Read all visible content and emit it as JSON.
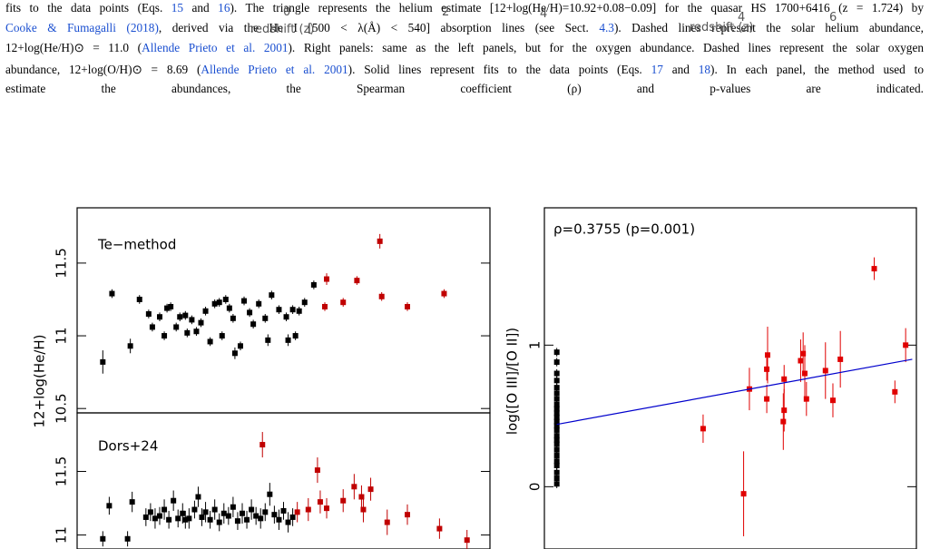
{
  "fragments": [
    "0",
    "2",
    "4",
    "redshift (z)",
    "4",
    "redshift (z)",
    "6"
  ],
  "caption": {
    "lines": [
      [
        "fits to the data points (Eqs. ",
        {
          "text": "15",
          "link": true
        },
        " and ",
        {
          "text": "16",
          "link": true
        },
        "). The triangle represents the helium estimate [12+log(He/H)=10.92+0.08−0.09] for the quasar HS 1700+6416 (z = 1.724) by"
      ],
      [
        {
          "text": "Cooke & Fumagalli (2018)",
          "link": true
        },
        ", derived via the He I [500 < λ(Å) < 540] absorption lines (see Sect. ",
        {
          "text": "4.3",
          "link": true
        },
        "). Dashed lines represent the solar helium abundance,"
      ],
      [
        "12+log(He/H)⊙ = 11.0 (",
        {
          "text": "Allende Prieto et al. 2001",
          "link": true
        },
        "). Right panels: same as the left panels, but for the oxygen abundance. Dashed lines represent the solar oxygen"
      ],
      [
        "abundance, 12+log(O/H)⊙ = 8.69 (",
        {
          "text": "Allende Prieto et al. 2001",
          "link": true
        },
        "). Solid lines represent fits to the data points (Eqs. ",
        {
          "text": "17",
          "link": true
        },
        " and ",
        {
          "text": "18",
          "link": true
        },
        "). In each panel, the method used to"
      ],
      [
        "estimate the abundances, the Spearman coefficient (ρ) and p-values are indicated."
      ]
    ]
  },
  "left_ylabel": "12+log(He/H)",
  "chart_data": [
    {
      "type": "scatter",
      "annotation": "Te−method",
      "xlim": [
        0,
        4.5
      ],
      "ylim": [
        10.47,
        11.88
      ],
      "yticks": [
        10.5,
        11,
        11.5
      ],
      "series": [
        {
          "color": "#000000",
          "x": [
            0.28,
            0.38,
            0.58,
            0.68,
            0.78,
            0.82,
            0.9,
            0.95,
            0.98,
            1.02,
            1.08,
            1.12,
            1.18,
            1.2,
            1.25,
            1.3,
            1.35,
            1.4,
            1.45,
            1.5,
            1.55,
            1.58,
            1.62,
            1.66,
            1.7,
            1.72,
            1.78,
            1.82,
            1.88,
            1.92,
            1.98,
            2.05,
            2.08,
            2.12,
            2.2,
            2.28,
            2.3,
            2.35,
            2.38,
            2.42,
            2.48,
            2.58
          ],
          "y": [
            10.82,
            11.29,
            10.93,
            11.25,
            11.15,
            11.06,
            11.13,
            11.0,
            11.19,
            11.2,
            11.06,
            11.13,
            11.14,
            11.02,
            11.11,
            11.03,
            11.09,
            11.17,
            10.96,
            11.22,
            11.23,
            11.0,
            11.25,
            11.19,
            11.12,
            10.88,
            10.93,
            11.24,
            11.16,
            11.08,
            11.22,
            11.12,
            10.97,
            11.28,
            11.18,
            11.13,
            10.97,
            11.18,
            11.0,
            11.17,
            11.23,
            11.35
          ],
          "errors": [
            0.08,
            0.03,
            0.05,
            0.03,
            0.03,
            0.03,
            0.03,
            0.03,
            0.03,
            0.03,
            0.03,
            0.03,
            0.03,
            0.03,
            0.03,
            0.03,
            0.03,
            0.03,
            0.03,
            0.03,
            0.03,
            0.03,
            0.03,
            0.03,
            0.03,
            0.04,
            0.03,
            0.03,
            0.03,
            0.03,
            0.03,
            0.03,
            0.04,
            0.03,
            0.03,
            0.03,
            0.04,
            0.03,
            0.03,
            0.03,
            0.03,
            0.03
          ]
        },
        {
          "color": "#c00000",
          "x": [
            2.7,
            2.72,
            2.9,
            3.05,
            3.3,
            3.32,
            3.6,
            4.0
          ],
          "y": [
            11.2,
            11.39,
            11.23,
            11.38,
            11.65,
            11.27,
            11.2,
            11.29
          ],
          "errors": [
            0.03,
            0.04,
            0.03,
            0.03,
            0.05,
            0.03,
            0.03,
            0.03
          ]
        }
      ]
    },
    {
      "type": "scatter",
      "annotation": "Dors+24",
      "xlim": [
        0,
        4.5
      ],
      "ylim": [
        10.89,
        11.96
      ],
      "yticks": [
        11,
        11.5
      ],
      "series": [
        {
          "color": "#000000",
          "x": [
            0.28,
            0.35,
            0.55,
            0.6,
            0.75,
            0.8,
            0.85,
            0.9,
            0.95,
            1.0,
            1.05,
            1.1,
            1.15,
            1.18,
            1.22,
            1.28,
            1.32,
            1.36,
            1.4,
            1.45,
            1.5,
            1.55,
            1.6,
            1.65,
            1.7,
            1.75,
            1.8,
            1.85,
            1.9,
            1.95,
            2.0,
            2.05,
            2.1,
            2.15,
            2.2,
            2.25,
            2.3,
            2.35
          ],
          "y": [
            10.97,
            11.23,
            10.97,
            11.26,
            11.14,
            11.18,
            11.13,
            11.15,
            11.2,
            11.12,
            11.27,
            11.13,
            11.17,
            11.12,
            11.13,
            11.2,
            11.3,
            11.14,
            11.18,
            11.12,
            11.2,
            11.1,
            11.17,
            11.15,
            11.22,
            11.11,
            11.17,
            11.12,
            11.2,
            11.15,
            11.13,
            11.18,
            11.32,
            11.16,
            11.12,
            11.19,
            11.1,
            11.14
          ],
          "errors": [
            0.06,
            0.07,
            0.06,
            0.08,
            0.07,
            0.07,
            0.08,
            0.07,
            0.08,
            0.07,
            0.08,
            0.07,
            0.08,
            0.07,
            0.08,
            0.07,
            0.08,
            0.07,
            0.08,
            0.07,
            0.08,
            0.07,
            0.08,
            0.07,
            0.08,
            0.07,
            0.08,
            0.07,
            0.08,
            0.07,
            0.08,
            0.07,
            0.09,
            0.07,
            0.08,
            0.07,
            0.08,
            0.07
          ]
        },
        {
          "color": "#c00000",
          "x": [
            2.02,
            2.4,
            2.52,
            2.62,
            2.65,
            2.72,
            2.9,
            3.02,
            3.1,
            3.12,
            3.2,
            3.38,
            3.6,
            3.95,
            4.25
          ],
          "y": [
            11.71,
            11.18,
            11.2,
            11.51,
            11.26,
            11.21,
            11.27,
            11.38,
            11.3,
            11.2,
            11.36,
            11.1,
            11.16,
            11.05,
            10.96
          ],
          "errors": [
            0.1,
            0.08,
            0.09,
            0.1,
            0.09,
            0.08,
            0.09,
            0.1,
            0.09,
            0.1,
            0.09,
            0.1,
            0.08,
            0.08,
            0.08
          ]
        }
      ]
    },
    {
      "type": "scatter",
      "ylabel": "log([O III]/[O II])",
      "annotation": "ρ=0.3755 (p=0.001)",
      "xlim": [
        0,
        4.5
      ],
      "ylim": [
        -0.44,
        1.97
      ],
      "yticks": [
        0,
        1
      ],
      "series": [
        {
          "color": "#000000",
          "x": [
            0.15,
            0.15,
            0.15,
            0.15,
            0.15,
            0.15,
            0.15,
            0.15,
            0.15,
            0.15,
            0.15,
            0.15,
            0.15,
            0.15,
            0.15,
            0.15,
            0.15,
            0.15,
            0.15,
            0.15,
            0.15,
            0.15,
            0.15,
            0.15
          ],
          "y": [
            0.02,
            0.06,
            0.1,
            0.15,
            0.18,
            0.22,
            0.26,
            0.3,
            0.33,
            0.36,
            0.4,
            0.43,
            0.46,
            0.49,
            0.52,
            0.55,
            0.58,
            0.62,
            0.66,
            0.7,
            0.75,
            0.8,
            0.88,
            0.95
          ],
          "errors": [
            0.03,
            0.03,
            0.03,
            0.03,
            0.03,
            0.03,
            0.03,
            0.03,
            0.03,
            0.03,
            0.03,
            0.03,
            0.03,
            0.03,
            0.03,
            0.03,
            0.03,
            0.03,
            0.03,
            0.03,
            0.03,
            0.03,
            0.03,
            0.03
          ]
        },
        {
          "color": "#e00000",
          "x": [
            1.92,
            2.41,
            2.48,
            2.69,
            2.69,
            2.7,
            2.89,
            2.9,
            2.9,
            3.1,
            3.13,
            3.15,
            3.17,
            3.4,
            3.49,
            3.58,
            3.99,
            4.24,
            4.37
          ],
          "y": [
            0.41,
            -0.05,
            0.69,
            0.62,
            0.83,
            0.93,
            0.46,
            0.54,
            0.76,
            0.89,
            0.94,
            0.8,
            0.62,
            0.82,
            0.61,
            0.9,
            1.54,
            0.67,
            1.0
          ],
          "errors": [
            0.1,
            0.3,
            0.15,
            0.1,
            0.08,
            0.2,
            0.2,
            0.15,
            0.1,
            0.15,
            0.15,
            0.2,
            0.12,
            0.2,
            0.12,
            0.2,
            0.08,
            0.08,
            0.12
          ]
        }
      ],
      "fit": {
        "color": "#0000cc",
        "x": [
          0.15,
          4.45
        ],
        "y": [
          0.44,
          0.9
        ]
      }
    }
  ]
}
